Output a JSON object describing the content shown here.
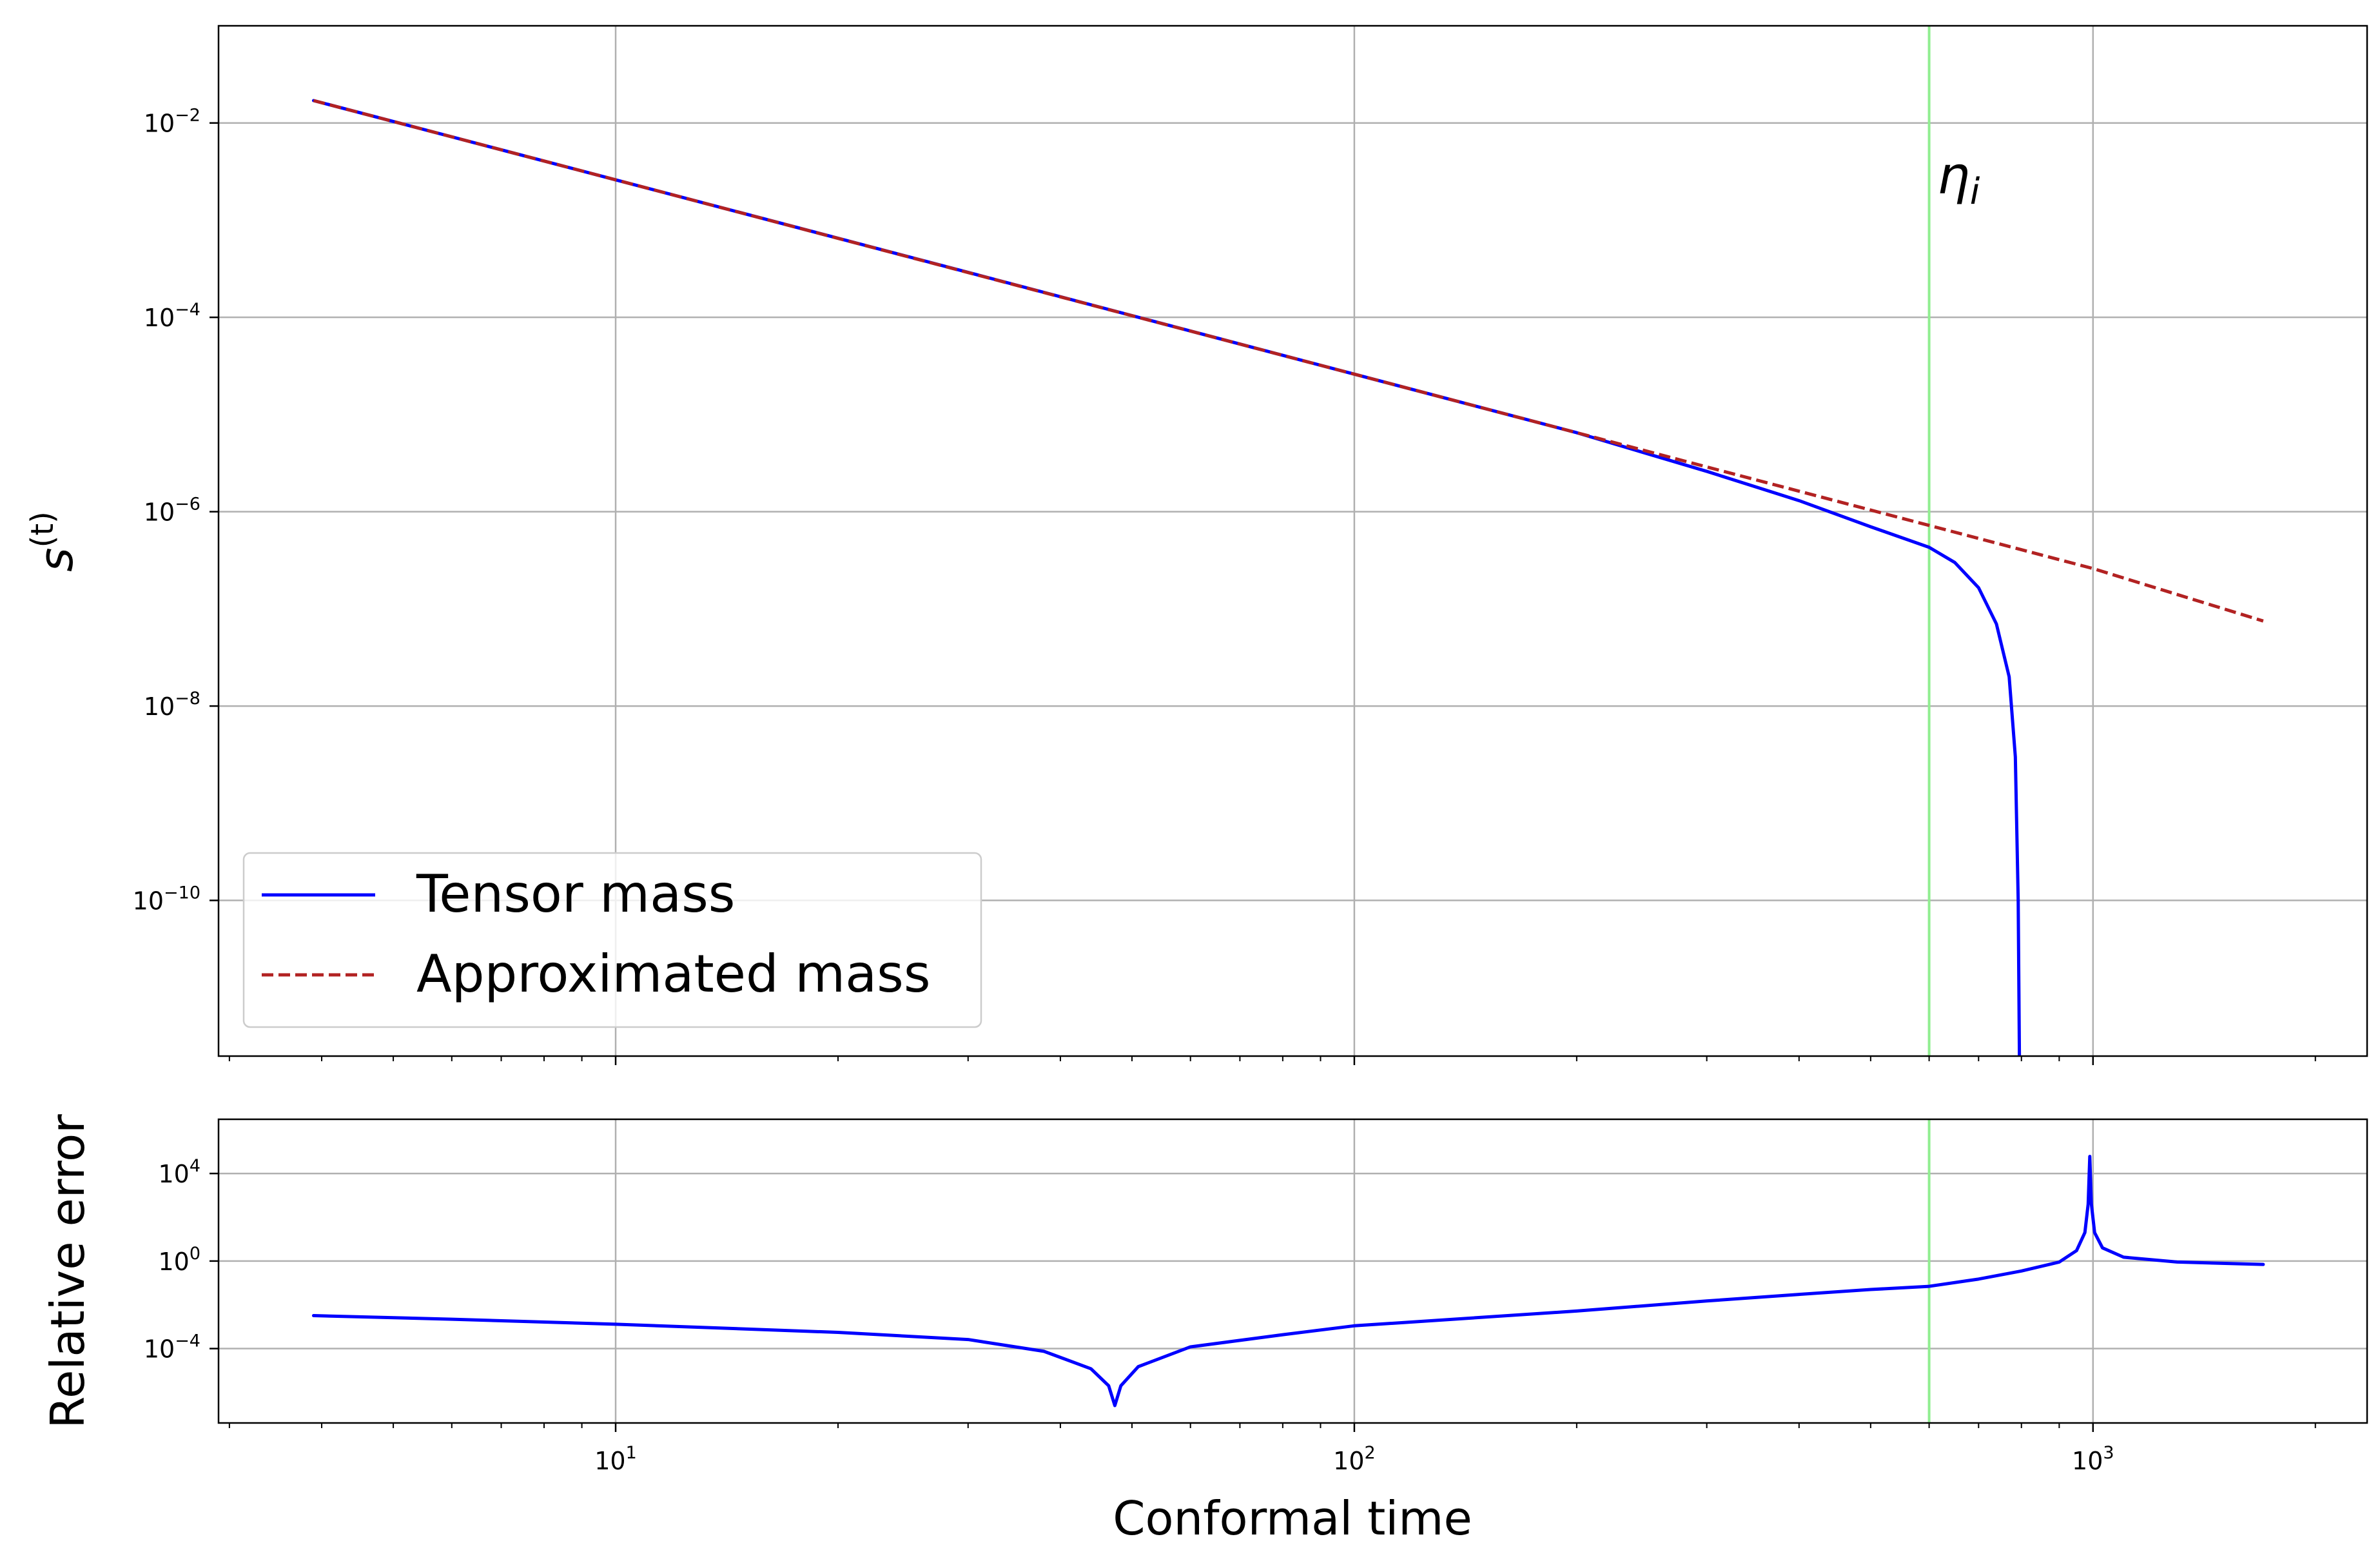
{
  "chart_data": [
    {
      "type": "line",
      "panel": "top",
      "ylabel": "s^(t)",
      "xscale": "log",
      "yscale": "log",
      "xlim": [
        2.9,
        2350
      ],
      "ylim": [
        2.5e-12,
        0.1
      ],
      "grid": true,
      "yticks": [
        {
          "base": "10",
          "exp": "−2",
          "value": 0.01
        },
        {
          "base": "10",
          "exp": "−4",
          "value": 0.0001
        },
        {
          "base": "10",
          "exp": "−6",
          "value": 1e-06
        },
        {
          "base": "10",
          "exp": "−8",
          "value": 1e-08
        },
        {
          "base": "10",
          "exp": "−10",
          "value": 1e-10
        }
      ],
      "legend": {
        "position": "lower-left"
      },
      "vline": {
        "x": 600,
        "label": "η_i",
        "color": "#90ee90"
      },
      "series": [
        {
          "name": "Tensor mass",
          "color": "#0000ff",
          "style": "solid",
          "points": [
            [
              3.9,
              0.017
            ],
            [
              10,
              0.0026
            ],
            [
              30,
              0.00029
            ],
            [
              100,
              2.6e-05
            ],
            [
              200,
              6.5e-06
            ],
            [
              300,
              2.6e-06
            ],
            [
              400,
              1.3e-06
            ],
            [
              500,
              7e-07
            ],
            [
              600,
              4.3e-07
            ],
            [
              650,
              3e-07
            ],
            [
              700,
              1.65e-07
            ],
            [
              740,
              7e-08
            ],
            [
              770,
              2e-08
            ],
            [
              785,
              3e-09
            ],
            [
              792,
              1e-10
            ],
            [
              795,
              2.5e-12
            ]
          ]
        },
        {
          "name": "Approximated mass",
          "color": "#b22222",
          "style": "dashed",
          "points": [
            [
              3.9,
              0.017
            ],
            [
              10,
              0.0026
            ],
            [
              100,
              2.6e-05
            ],
            [
              1000,
              2.6e-07
            ],
            [
              1700,
              7.5e-08
            ]
          ]
        }
      ]
    },
    {
      "type": "line",
      "panel": "bottom",
      "xlabel": "Conformal time",
      "ylabel": "Relative error",
      "xscale": "log",
      "yscale": "log",
      "xlim": [
        2.9,
        2350
      ],
      "ylim": [
        4e-08,
        3000000.0
      ],
      "grid": true,
      "xticks": [
        {
          "base": "10",
          "exp": "1",
          "value": 10
        },
        {
          "base": "10",
          "exp": "2",
          "value": 100
        },
        {
          "base": "10",
          "exp": "3",
          "value": 1000
        }
      ],
      "yticks": [
        {
          "base": "10",
          "exp": "4",
          "value": 10000
        },
        {
          "base": "10",
          "exp": "0",
          "value": 1
        },
        {
          "base": "10",
          "exp": "−4",
          "value": 0.0001
        }
      ],
      "vline": {
        "x": 600,
        "color": "#90ee90"
      },
      "series": [
        {
          "color": "#0000ff",
          "style": "solid",
          "points": [
            [
              3.9,
              0.0032
            ],
            [
              6,
              0.0022
            ],
            [
              10,
              0.0013
            ],
            [
              20,
              0.00055
            ],
            [
              30,
              0.00026
            ],
            [
              38,
              7.5e-05
            ],
            [
              44,
              1.2e-05
            ],
            [
              46.5,
              2e-06
            ],
            [
              47.4,
              2.5e-07
            ],
            [
              48.3,
              2e-06
            ],
            [
              51,
              1.5e-05
            ],
            [
              60,
              0.00012
            ],
            [
              80,
              0.00043
            ],
            [
              100,
              0.0011
            ],
            [
              200,
              0.0052
            ],
            [
              300,
              0.015
            ],
            [
              400,
              0.03
            ],
            [
              500,
              0.05
            ],
            [
              600,
              0.07
            ],
            [
              700,
              0.15
            ],
            [
              800,
              0.35
            ],
            [
              900,
              0.9
            ],
            [
              950,
              3
            ],
            [
              975,
              20
            ],
            [
              985,
              400
            ],
            [
              990,
              60000
            ],
            [
              995,
              400
            ],
            [
              1005,
              20
            ],
            [
              1030,
              4
            ],
            [
              1100,
              1.5
            ],
            [
              1300,
              0.9
            ],
            [
              1700,
              0.7
            ]
          ]
        }
      ]
    }
  ]
}
